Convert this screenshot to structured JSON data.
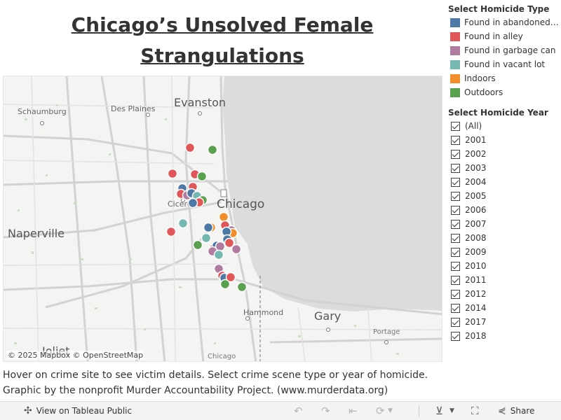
{
  "title": "Chicago’s Unsolved Female Strangulations",
  "map": {
    "places": {
      "evanston": "Evanston",
      "schaumburg": "Schaumburg",
      "des_plaines": "Des Plaines",
      "chicago": "Chicago",
      "cicero": "Cicero",
      "naperville": "Naperville",
      "hammond": "Hammond",
      "gary": "Gary",
      "portage": "Portage",
      "joliet": "Joliet",
      "chicago_heights": "Chicago"
    },
    "attribution": "© 2025 Mapbox  © OpenStreetMap",
    "colors": {
      "abandoned": "#4e79a7",
      "alley": "#e15759",
      "garbage": "#b07aa1",
      "vacant": "#76b7b2",
      "indoors": "#f28e2b",
      "outdoors": "#59a14f"
    }
  },
  "legend": {
    "title": "Select Homicide Type",
    "items": [
      {
        "label": "Found in abandoned building",
        "color": "#4e79a7"
      },
      {
        "label": "Found in alley",
        "color": "#e15759"
      },
      {
        "label": "Found in garbage can",
        "color": "#b07aa1"
      },
      {
        "label": "Found in vacant lot",
        "color": "#76b7b2"
      },
      {
        "label": "Indoors",
        "color": "#f28e2b"
      },
      {
        "label": "Outdoors",
        "color": "#59a14f"
      }
    ]
  },
  "year_filter": {
    "title": "Select Homicide Year",
    "items": [
      "(All)",
      "2001",
      "2002",
      "2003",
      "2004",
      "2005",
      "2006",
      "2007",
      "2008",
      "2009",
      "2010",
      "2011",
      "2012",
      "2014",
      "2017",
      "2018"
    ]
  },
  "caption": {
    "line1": "Hover on crime site to see victim details. Select crime scene type or year of homicide.",
    "line2": "Graphic by the nonprofit Murder Accountability Project. (www.murderdata.org)"
  },
  "toolbar": {
    "view_label": "View on Tableau Public",
    "share_label": "Share"
  }
}
